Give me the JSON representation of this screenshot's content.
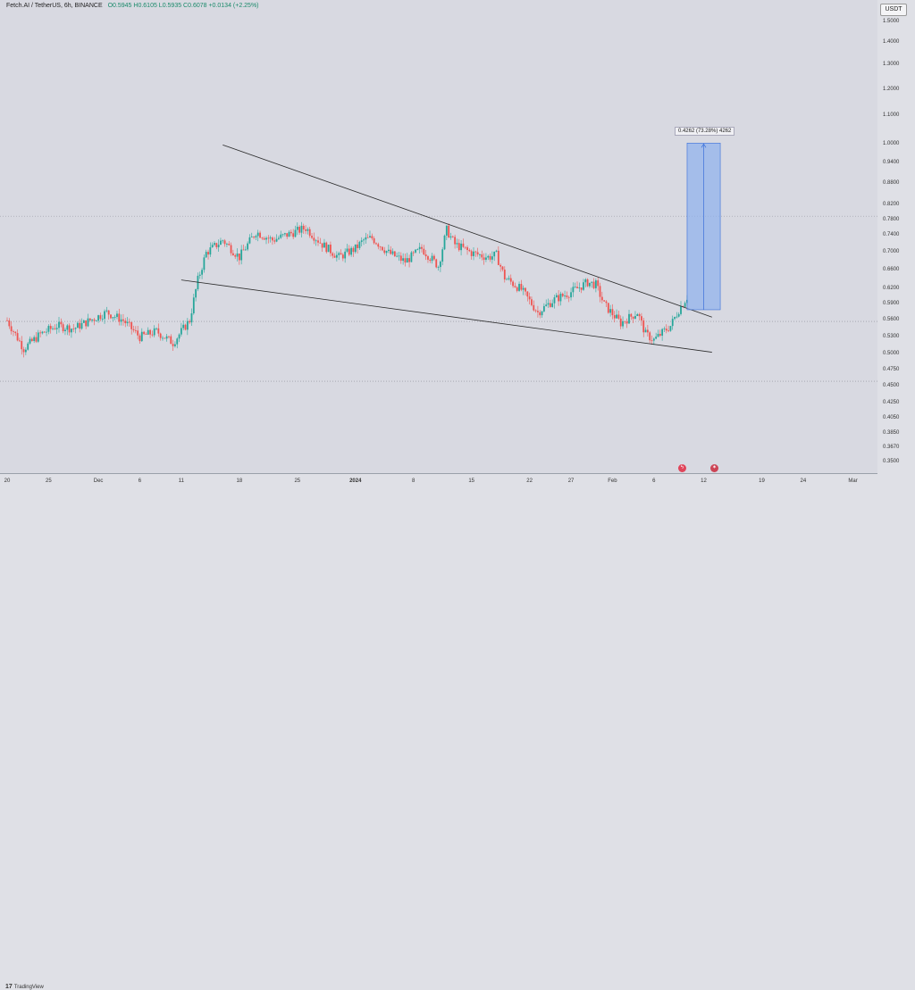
{
  "header": {
    "symbol": "Fetch.AI / TetherUS, 6h, BINANCE",
    "values": "O0.5945 H0.6105 L0.5935 C0.6078 +0.0134 (+2.25%)"
  },
  "currency": "USDT",
  "measure_label": "0.4262 (73.28%) 4262",
  "footer_logo": "TradingView",
  "logo_mark": "17",
  "event_icons": {
    "first": {
      "icon": "flash-icon",
      "color": "#e0455a"
    },
    "second": {
      "icon": "us-flag-icon",
      "color": "#cc4455"
    }
  },
  "colors": {
    "up": "#26a69a",
    "down": "#ef5350",
    "trendline": "#2b2b2b",
    "measure_fill": "#8fb0ee",
    "measure_stroke": "#3a6fd8"
  },
  "chart_data": {
    "type": "candlestick",
    "title": "",
    "xlabel": "",
    "ylabel": "",
    "y_scale": "log",
    "ylim": [
      0.34,
      1.6
    ],
    "yticks": [
      1.5,
      1.4,
      1.3,
      1.2,
      1.1,
      1.0,
      0.94,
      0.88,
      0.82,
      0.78,
      0.74,
      0.7,
      0.66,
      0.62,
      0.59,
      0.56,
      0.53,
      0.5,
      0.475,
      0.45,
      0.425,
      0.405,
      0.385,
      0.367,
      0.35
    ],
    "ytick_labels": [
      "1.5000",
      "1.4000",
      "1.3000",
      "1.2000",
      "1.1000",
      "1.0000",
      "0.9400",
      "0.8800",
      "0.8200",
      "0.7800",
      "0.7400",
      "0.7000",
      "0.6600",
      "0.6200",
      "0.5900",
      "0.5600",
      "0.5300",
      "0.5000",
      "0.4750",
      "0.4500",
      "0.4250",
      "0.4050",
      "0.3850",
      "0.3670",
      "0.3500"
    ],
    "x_ticks": [
      {
        "label": "20",
        "day": 0,
        "bold": false
      },
      {
        "label": "25",
        "day": 5,
        "bold": false
      },
      {
        "label": "Dec",
        "day": 11,
        "bold": false
      },
      {
        "label": "6",
        "day": 16,
        "bold": false
      },
      {
        "label": "11",
        "day": 21,
        "bold": false
      },
      {
        "label": "18",
        "day": 28,
        "bold": false
      },
      {
        "label": "25",
        "day": 35,
        "bold": false
      },
      {
        "label": "2024",
        "day": 42,
        "bold": true
      },
      {
        "label": "8",
        "day": 49,
        "bold": false
      },
      {
        "label": "15",
        "day": 56,
        "bold": false
      },
      {
        "label": "22",
        "day": 63,
        "bold": false
      },
      {
        "label": "27",
        "day": 68,
        "bold": false
      },
      {
        "label": "Feb",
        "day": 73,
        "bold": false
      },
      {
        "label": "6",
        "day": 78,
        "bold": false
      },
      {
        "label": "12",
        "day": 84,
        "bold": false
      },
      {
        "label": "19",
        "day": 91,
        "bold": false
      },
      {
        "label": "24",
        "day": 96,
        "bold": false
      },
      {
        "label": "Mar",
        "day": 102,
        "bold": false
      }
    ],
    "close_path": [
      [
        0,
        0.56
      ],
      [
        2,
        0.51
      ],
      [
        4,
        0.535
      ],
      [
        6,
        0.55
      ],
      [
        8,
        0.545
      ],
      [
        10,
        0.56
      ],
      [
        12,
        0.575
      ],
      [
        14,
        0.56
      ],
      [
        16,
        0.53
      ],
      [
        18,
        0.54
      ],
      [
        20,
        0.52
      ],
      [
        22,
        0.56
      ],
      [
        23,
        0.64
      ],
      [
        24,
        0.7
      ],
      [
        26,
        0.73
      ],
      [
        28,
        0.69
      ],
      [
        30,
        0.75
      ],
      [
        32,
        0.73
      ],
      [
        34,
        0.745
      ],
      [
        36,
        0.76
      ],
      [
        38,
        0.72
      ],
      [
        40,
        0.69
      ],
      [
        42,
        0.71
      ],
      [
        43,
        0.73
      ],
      [
        44,
        0.735
      ],
      [
        46,
        0.7
      ],
      [
        48,
        0.68
      ],
      [
        50,
        0.71
      ],
      [
        52,
        0.67
      ],
      [
        53,
        0.755
      ],
      [
        54,
        0.72
      ],
      [
        56,
        0.7
      ],
      [
        58,
        0.69
      ],
      [
        59,
        0.695
      ],
      [
        60,
        0.645
      ],
      [
        62,
        0.62
      ],
      [
        64,
        0.575
      ],
      [
        66,
        0.6
      ],
      [
        68,
        0.615
      ],
      [
        70,
        0.635
      ],
      [
        71,
        0.63
      ],
      [
        72,
        0.59
      ],
      [
        74,
        0.555
      ],
      [
        76,
        0.575
      ],
      [
        77,
        0.535
      ],
      [
        78,
        0.525
      ],
      [
        80,
        0.55
      ],
      [
        81,
        0.58
      ],
      [
        82,
        0.605
      ]
    ],
    "ohlc_sample": {
      "open": 0.5945,
      "high": 0.6105,
      "low": 0.5935,
      "close": 0.6078,
      "change": 0.0134,
      "change_pct": 2.25
    },
    "lines": {
      "resistance": {
        "from": [
          26,
          1.0
        ],
        "to": [
          85,
          0.566
        ]
      },
      "support": {
        "from": [
          21,
          0.64
        ],
        "to": [
          85,
          0.504
        ]
      },
      "hline_1": 0.79,
      "hline_2": 0.558,
      "hline_3": 0.458
    },
    "measure": {
      "x_from": 82,
      "x_to": 86,
      "y_from": 0.58,
      "y_to": 1.006,
      "change": 0.4262,
      "change_pct": 73.28,
      "ticks": 4262
    }
  }
}
